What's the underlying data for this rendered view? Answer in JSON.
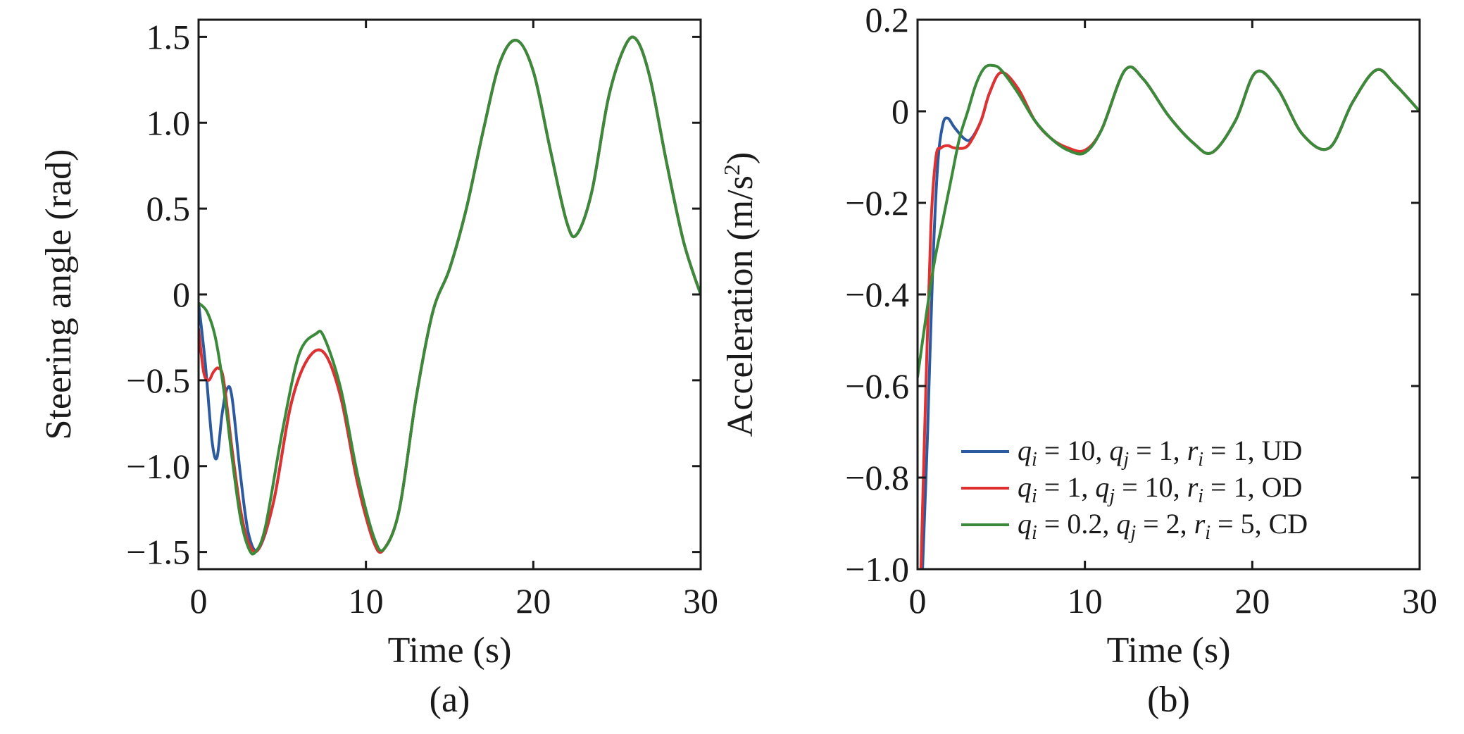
{
  "colors": {
    "UD": "#2c5aa0",
    "OD": "#e03030",
    "CD": "#3a8a3a",
    "axis": "#1a1a1a",
    "background": "#ffffff"
  },
  "chart_data": [
    {
      "type": "line",
      "panel_label": "(a)",
      "xlabel": "Time (s)",
      "ylabel": "Steering angle (rad)",
      "xlim": [
        0,
        30
      ],
      "ylim": [
        -1.6,
        1.6
      ],
      "xticks": [
        0,
        10,
        20,
        30
      ],
      "xtick_labels": [
        "0",
        "10",
        "20",
        "30"
      ],
      "yticks": [
        1.5,
        1.0,
        0.5,
        0,
        -0.5,
        -1.0,
        -1.5
      ],
      "ytick_labels": [
        "1.5",
        "1.0",
        "0.5",
        "0",
        "−0.5",
        "−1.0",
        "−1.5"
      ],
      "grid": false,
      "series": [
        {
          "key": "UD",
          "x": [
            0,
            0.4,
            0.8,
            1.1,
            1.4,
            1.7,
            2.0,
            2.5,
            3.0,
            3.6,
            4.5,
            5.5,
            6.5,
            7.5,
            8.5,
            9.5,
            10.5,
            11.1,
            12.0,
            13.0,
            14.0,
            15.0,
            16.0,
            17.0,
            18.0,
            19.0,
            20.0,
            21.0,
            22.0,
            22.6,
            23.5,
            24.5,
            25.5,
            26.2,
            27.0,
            28.0,
            29.0,
            30.0
          ],
          "y": [
            -0.05,
            -0.4,
            -0.85,
            -0.95,
            -0.7,
            -0.55,
            -0.6,
            -1.05,
            -1.4,
            -1.48,
            -1.2,
            -0.65,
            -0.38,
            -0.34,
            -0.6,
            -1.1,
            -1.45,
            -1.48,
            -1.25,
            -0.6,
            -0.1,
            0.15,
            0.5,
            0.95,
            1.35,
            1.48,
            1.3,
            0.85,
            0.42,
            0.35,
            0.6,
            1.15,
            1.45,
            1.48,
            1.25,
            0.75,
            0.3,
            0.0
          ]
        },
        {
          "key": "OD",
          "x": [
            0,
            0.3,
            0.6,
            0.9,
            1.2,
            1.5,
            2.0,
            2.5,
            3.0,
            3.6,
            4.5,
            5.5,
            6.5,
            7.5,
            8.5,
            9.5,
            10.5,
            11.1,
            12.0,
            13.0,
            14.0,
            15.0,
            16.0,
            17.0,
            18.0,
            19.0,
            20.0,
            21.0,
            22.0,
            22.6,
            23.5,
            24.5,
            25.5,
            26.2,
            27.0,
            28.0,
            29.0,
            30.0
          ],
          "y": [
            -0.2,
            -0.45,
            -0.5,
            -0.45,
            -0.43,
            -0.5,
            -0.9,
            -1.25,
            -1.45,
            -1.48,
            -1.2,
            -0.65,
            -0.38,
            -0.34,
            -0.6,
            -1.1,
            -1.45,
            -1.48,
            -1.25,
            -0.6,
            -0.1,
            0.15,
            0.5,
            0.95,
            1.35,
            1.48,
            1.3,
            0.85,
            0.42,
            0.35,
            0.6,
            1.15,
            1.45,
            1.48,
            1.25,
            0.75,
            0.3,
            0.0
          ]
        },
        {
          "key": "CD",
          "x": [
            0,
            0.5,
            1.0,
            1.5,
            2.0,
            2.5,
            3.0,
            3.4,
            4.0,
            5.0,
            6.0,
            7.0,
            7.5,
            8.5,
            9.5,
            10.5,
            11.1,
            12.0,
            13.0,
            14.0,
            15.0,
            16.0,
            17.0,
            18.0,
            19.0,
            20.0,
            21.0,
            22.0,
            22.6,
            23.5,
            24.5,
            25.5,
            26.2,
            27.0,
            28.0,
            29.0,
            30.0
          ],
          "y": [
            -0.05,
            -0.1,
            -0.25,
            -0.55,
            -0.95,
            -1.3,
            -1.48,
            -1.5,
            -1.35,
            -0.8,
            -0.35,
            -0.23,
            -0.25,
            -0.55,
            -1.05,
            -1.42,
            -1.48,
            -1.25,
            -0.6,
            -0.1,
            0.15,
            0.5,
            0.95,
            1.35,
            1.48,
            1.3,
            0.85,
            0.42,
            0.35,
            0.6,
            1.15,
            1.45,
            1.48,
            1.25,
            0.75,
            0.3,
            0.0
          ]
        }
      ]
    },
    {
      "type": "line",
      "panel_label": "(b)",
      "xlabel": "Time (s)",
      "ylabel": "Acceleration (m/s",
      "ylabel_sup": "2",
      "ylabel_end": ")",
      "xlim": [
        0,
        30
      ],
      "ylim": [
        -1.0,
        0.2
      ],
      "xticks": [
        0,
        10,
        20,
        30
      ],
      "xtick_labels": [
        "0",
        "10",
        "20",
        "30"
      ],
      "yticks": [
        0.2,
        0,
        -0.2,
        -0.4,
        -0.6,
        -0.8,
        -1.0
      ],
      "ytick_labels": [
        "0.2",
        "0",
        "−0.2",
        "−0.4",
        "−0.6",
        "−0.8",
        "−1.0"
      ],
      "grid": false,
      "legend_position": "bottom-right",
      "series": [
        {
          "key": "UD",
          "x": [
            0.3,
            0.6,
            0.9,
            1.2,
            1.5,
            1.8,
            2.2,
            2.8,
            3.2,
            3.8,
            4.3,
            5.0,
            6.0,
            7.0,
            8.0,
            9.0,
            10.0,
            11.0,
            12.4,
            13.5,
            15.0,
            16.5,
            17.6,
            19.0,
            20.2,
            21.5,
            23.0,
            24.6,
            26.0,
            27.4,
            28.5,
            30.0
          ],
          "y": [
            -1.0,
            -0.7,
            -0.35,
            -0.12,
            -0.03,
            -0.015,
            -0.035,
            -0.06,
            -0.06,
            -0.02,
            0.04,
            0.085,
            0.05,
            -0.02,
            -0.06,
            -0.085,
            -0.09,
            -0.04,
            0.09,
            0.07,
            -0.01,
            -0.07,
            -0.09,
            -0.02,
            0.085,
            0.05,
            -0.05,
            -0.08,
            0.02,
            0.09,
            0.06,
            0.0
          ]
        },
        {
          "key": "OD",
          "x": [
            0.2,
            0.5,
            0.8,
            1.1,
            1.4,
            1.8,
            2.2,
            2.8,
            3.2,
            3.8,
            4.3,
            5.0,
            6.0,
            7.0,
            8.0,
            9.0,
            10.0,
            11.0,
            12.4,
            13.5,
            15.0,
            16.5,
            17.6,
            19.0,
            20.2,
            21.5,
            23.0,
            24.6,
            26.0,
            27.4,
            28.5,
            30.0
          ],
          "y": [
            -1.0,
            -0.6,
            -0.25,
            -0.1,
            -0.08,
            -0.075,
            -0.08,
            -0.08,
            -0.065,
            -0.02,
            0.04,
            0.085,
            0.05,
            -0.02,
            -0.06,
            -0.08,
            -0.085,
            -0.04,
            0.09,
            0.07,
            -0.01,
            -0.07,
            -0.09,
            -0.02,
            0.085,
            0.05,
            -0.05,
            -0.08,
            0.02,
            0.09,
            0.06,
            0.0
          ]
        },
        {
          "key": "CD",
          "x": [
            0,
            0.5,
            1.0,
            1.5,
            2.0,
            2.5,
            3.0,
            3.5,
            4.0,
            4.5,
            5.0,
            6.0,
            7.0,
            8.0,
            9.0,
            10.0,
            11.0,
            12.4,
            13.5,
            15.0,
            16.5,
            17.6,
            19.0,
            20.2,
            21.5,
            23.0,
            24.6,
            26.0,
            27.4,
            28.5,
            30.0
          ],
          "y": [
            -0.58,
            -0.45,
            -0.33,
            -0.24,
            -0.15,
            -0.06,
            0.0,
            0.06,
            0.095,
            0.1,
            0.09,
            0.04,
            -0.02,
            -0.06,
            -0.085,
            -0.09,
            -0.04,
            0.09,
            0.07,
            -0.01,
            -0.07,
            -0.09,
            -0.02,
            0.085,
            0.05,
            -0.05,
            -0.08,
            0.02,
            0.09,
            0.06,
            0.0
          ]
        }
      ],
      "legend": [
        {
          "key": "UD",
          "q1": "q",
          "s1": "i",
          "v1": " = 10, ",
          "q2": "q",
          "s2": "j",
          "v2": " = 1, ",
          "q3": "r",
          "s3": "i",
          "v3": " = 1, UD"
        },
        {
          "key": "OD",
          "q1": "q",
          "s1": "i",
          "v1": " = 1, ",
          "q2": "q",
          "s2": "j",
          "v2": " = 10, ",
          "q3": "r",
          "s3": "i",
          "v3": " = 1, OD"
        },
        {
          "key": "CD",
          "q1": "q",
          "s1": "i",
          "v1": " = 0.2, ",
          "q2": "q",
          "s2": "j",
          "v2": " = 2, ",
          "q3": "r",
          "s3": "i",
          "v3": " = 5, CD"
        }
      ]
    }
  ]
}
